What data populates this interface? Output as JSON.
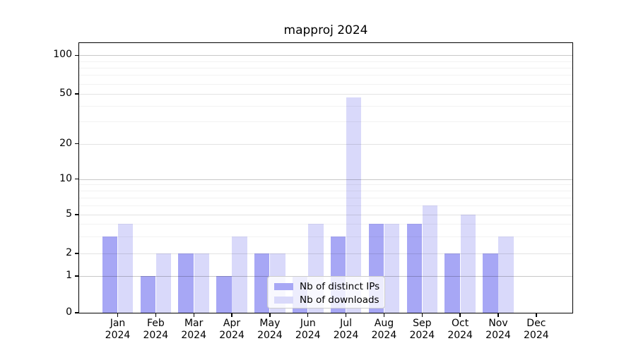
{
  "chart_data": {
    "type": "bar",
    "title": "mapproj 2024",
    "categories": [
      "Jan 2024",
      "Feb 2024",
      "Mar 2024",
      "Apr 2024",
      "May 2024",
      "Jun 2024",
      "Jul 2024",
      "Aug 2024",
      "Sep 2024",
      "Oct 2024",
      "Nov 2024",
      "Dec 2024"
    ],
    "series": [
      {
        "name": "Nb of distinct IPs",
        "values": [
          3,
          1,
          2,
          1,
          2,
          1,
          3,
          4,
          4,
          2,
          2,
          0
        ],
        "color": "#a7a7f5"
      },
      {
        "name": "Nb of downloads",
        "values": [
          4,
          2,
          2,
          3,
          2,
          4,
          47,
          4,
          6,
          5,
          3,
          0
        ],
        "color": "#d9d9fa"
      }
    ],
    "xlabel": "",
    "ylabel": "",
    "y_ticks": [
      0,
      1,
      2,
      5,
      10,
      20,
      50,
      100
    ],
    "ylim": [
      0,
      125
    ],
    "yscale": "piecewise-log (0,1 linear; log between labeled ticks)",
    "grid": "horizontal, decade lines darker, minor lines faint",
    "legend_position": "inside bottom-center"
  }
}
